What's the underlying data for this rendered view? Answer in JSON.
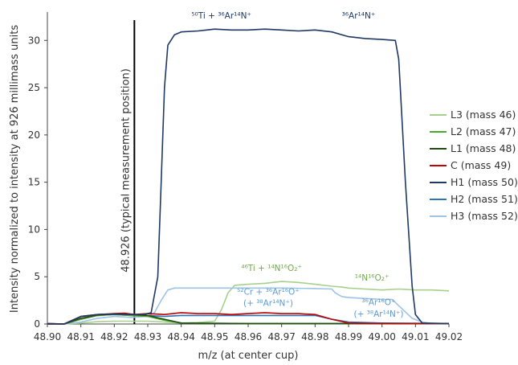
{
  "chart_data": {
    "type": "line",
    "title": "",
    "xlabel": "m/z (at center cup)",
    "ylabel": "Intensity normalized to intensity at 926 millimass units",
    "xlim": [
      48.9,
      49.02
    ],
    "ylim": [
      0,
      33
    ],
    "grid": false,
    "legend_position": "right",
    "x_ticks": [
      "48.90",
      "48.91",
      "48.92",
      "48.93",
      "48.94",
      "48.95",
      "48.96",
      "48.97",
      "48.98",
      "48.99",
      "49.00",
      "49.01",
      "49.02"
    ],
    "y_ticks": [
      "0",
      "5",
      "10",
      "15",
      "20",
      "25",
      "30"
    ],
    "vline": {
      "x": 48.926,
      "label": "48.926 (typical measurement position)"
    },
    "series": [
      {
        "name": "L3 (mass 46)",
        "color": "#a8d08d",
        "points": [
          [
            48.9,
            0.05
          ],
          [
            48.905,
            0.0
          ],
          [
            48.91,
            0.1
          ],
          [
            48.915,
            0.25
          ],
          [
            48.92,
            0.3
          ],
          [
            48.925,
            0.3
          ],
          [
            48.93,
            0.3
          ],
          [
            48.935,
            0.2
          ],
          [
            48.94,
            0.1
          ],
          [
            48.945,
            0.15
          ],
          [
            48.95,
            0.3
          ],
          [
            48.952,
            1.5
          ],
          [
            48.954,
            3.3
          ],
          [
            48.956,
            4.1
          ],
          [
            48.96,
            4.2
          ],
          [
            48.965,
            4.3
          ],
          [
            48.97,
            4.5
          ],
          [
            48.975,
            4.4
          ],
          [
            48.98,
            4.2
          ],
          [
            48.985,
            4.0
          ],
          [
            48.988,
            3.9
          ],
          [
            48.99,
            3.8
          ],
          [
            48.995,
            3.7
          ],
          [
            49.0,
            3.6
          ],
          [
            49.005,
            3.7
          ],
          [
            49.01,
            3.6
          ],
          [
            49.015,
            3.6
          ],
          [
            49.02,
            3.5
          ]
        ]
      },
      {
        "name": "L2 (mass 47)",
        "color": "#4ea72e",
        "points": [
          [
            48.9,
            0.0
          ],
          [
            48.905,
            0.0
          ],
          [
            48.91,
            0.5
          ],
          [
            48.915,
            0.9
          ],
          [
            48.92,
            1.0
          ],
          [
            48.925,
            0.9
          ],
          [
            48.93,
            0.8
          ],
          [
            48.935,
            0.4
          ],
          [
            48.94,
            0.1
          ],
          [
            48.96,
            0.05
          ],
          [
            48.98,
            0.05
          ],
          [
            49.0,
            0.05
          ],
          [
            49.02,
            0.05
          ]
        ]
      },
      {
        "name": "L1 (mass 48)",
        "color": "#1e4d12",
        "points": [
          [
            48.9,
            0.0
          ],
          [
            48.905,
            0.0
          ],
          [
            48.91,
            0.6
          ],
          [
            48.915,
            0.95
          ],
          [
            48.92,
            1.05
          ],
          [
            48.925,
            1.0
          ],
          [
            48.93,
            0.9
          ],
          [
            48.935,
            0.5
          ],
          [
            48.94,
            0.1
          ],
          [
            48.96,
            0.05
          ],
          [
            48.98,
            0.05
          ],
          [
            49.0,
            0.05
          ],
          [
            49.02,
            0.05
          ]
        ]
      },
      {
        "name": "C (mass 49)",
        "color": "#c00000",
        "points": [
          [
            48.9,
            0.0
          ],
          [
            48.905,
            0.0
          ],
          [
            48.91,
            0.8
          ],
          [
            48.915,
            1.0
          ],
          [
            48.92,
            1.1
          ],
          [
            48.923,
            1.15
          ],
          [
            48.926,
            1.0
          ],
          [
            48.93,
            1.1
          ],
          [
            48.935,
            1.0
          ],
          [
            48.94,
            1.2
          ],
          [
            48.945,
            1.1
          ],
          [
            48.95,
            1.1
          ],
          [
            48.955,
            1.0
          ],
          [
            48.96,
            1.1
          ],
          [
            48.965,
            1.2
          ],
          [
            48.97,
            1.1
          ],
          [
            48.975,
            1.1
          ],
          [
            48.98,
            1.0
          ],
          [
            48.985,
            0.5
          ],
          [
            48.99,
            0.1
          ],
          [
            49.0,
            0.05
          ],
          [
            49.02,
            0.05
          ]
        ]
      },
      {
        "name": "H1 (mass 50)",
        "color": "#1f3864",
        "points": [
          [
            48.9,
            0.05
          ],
          [
            48.905,
            0.0
          ],
          [
            48.91,
            0.8
          ],
          [
            48.915,
            1.0
          ],
          [
            48.92,
            1.05
          ],
          [
            48.925,
            1.0
          ],
          [
            48.929,
            1.0
          ],
          [
            48.931,
            1.2
          ],
          [
            48.933,
            5.0
          ],
          [
            48.934,
            15.0
          ],
          [
            48.935,
            25.0
          ],
          [
            48.936,
            29.5
          ],
          [
            48.938,
            30.6
          ],
          [
            48.94,
            30.9
          ],
          [
            48.945,
            31.0
          ],
          [
            48.95,
            31.2
          ],
          [
            48.955,
            31.1
          ],
          [
            48.96,
            31.1
          ],
          [
            48.965,
            31.2
          ],
          [
            48.97,
            31.1
          ],
          [
            48.975,
            31.0
          ],
          [
            48.98,
            31.1
          ],
          [
            48.985,
            30.9
          ],
          [
            48.99,
            30.4
          ],
          [
            48.995,
            30.2
          ],
          [
            49.0,
            30.1
          ],
          [
            49.004,
            30.0
          ],
          [
            49.005,
            28.0
          ],
          [
            49.007,
            15.0
          ],
          [
            49.009,
            4.0
          ],
          [
            49.01,
            1.0
          ],
          [
            49.012,
            0.1
          ],
          [
            49.02,
            0.05
          ]
        ]
      },
      {
        "name": "H2 (mass 51)",
        "color": "#2e75b6",
        "points": [
          [
            48.9,
            0.05
          ],
          [
            48.905,
            0.0
          ],
          [
            48.91,
            0.5
          ],
          [
            48.915,
            0.9
          ],
          [
            48.92,
            1.0
          ],
          [
            48.925,
            0.9
          ],
          [
            48.93,
            0.9
          ],
          [
            48.935,
            0.8
          ],
          [
            48.94,
            0.9
          ],
          [
            48.95,
            0.9
          ],
          [
            48.96,
            0.9
          ],
          [
            48.97,
            0.9
          ],
          [
            48.98,
            0.9
          ],
          [
            48.985,
            0.5
          ],
          [
            48.99,
            0.2
          ],
          [
            49.0,
            0.1
          ],
          [
            49.02,
            0.05
          ]
        ]
      },
      {
        "name": "H3 (mass 52)",
        "color": "#9dc3e6",
        "points": [
          [
            48.9,
            0.05
          ],
          [
            48.905,
            0.0
          ],
          [
            48.91,
            0.2
          ],
          [
            48.915,
            0.6
          ],
          [
            48.92,
            0.8
          ],
          [
            48.925,
            0.7
          ],
          [
            48.93,
            0.8
          ],
          [
            48.932,
            1.2
          ],
          [
            48.934,
            2.5
          ],
          [
            48.936,
            3.6
          ],
          [
            48.938,
            3.8
          ],
          [
            48.94,
            3.8
          ],
          [
            48.95,
            3.8
          ],
          [
            48.96,
            3.8
          ],
          [
            48.97,
            3.8
          ],
          [
            48.98,
            3.75
          ],
          [
            48.985,
            3.7
          ],
          [
            48.986,
            3.3
          ],
          [
            48.988,
            2.9
          ],
          [
            48.99,
            2.8
          ],
          [
            48.995,
            2.7
          ],
          [
            49.0,
            2.6
          ],
          [
            49.003,
            2.6
          ],
          [
            49.006,
            1.6
          ],
          [
            49.009,
            0.6
          ],
          [
            49.012,
            0.2
          ],
          [
            49.015,
            0.05
          ],
          [
            49.02,
            0.05
          ]
        ]
      }
    ],
    "annotations": [
      {
        "text": "⁵⁰Ti + ³⁶Ar¹⁴N⁺",
        "x": 48.952,
        "y": 32.3,
        "color": "#1f3864"
      },
      {
        "text": "³⁶Ar¹⁴N⁺",
        "x": 48.993,
        "y": 32.3,
        "color": "#1f3864"
      },
      {
        "text": "⁴⁶Ti + ¹⁴N¹⁶O₂⁺",
        "x": 48.967,
        "y": 5.6,
        "color": "#70ad47"
      },
      {
        "text": "¹⁴N¹⁶O₂⁺",
        "x": 48.997,
        "y": 4.6,
        "color": "#70ad47"
      },
      {
        "text": "⁵²Cr + ³⁶Ar¹⁶O⁺",
        "x": 48.966,
        "y": 3.1,
        "color": "#5b9bd5"
      },
      {
        "text": "(+ ³⁸Ar¹⁴N⁺)",
        "x": 48.966,
        "y": 1.9,
        "color": "#5b9bd5"
      },
      {
        "text": "³⁶Ar¹⁶O⁺",
        "x": 48.999,
        "y": 2.0,
        "color": "#5b9bd5"
      },
      {
        "text": "(+ ³⁸Ar¹⁴N⁺)",
        "x": 48.999,
        "y": 0.75,
        "color": "#5b9bd5"
      }
    ]
  }
}
